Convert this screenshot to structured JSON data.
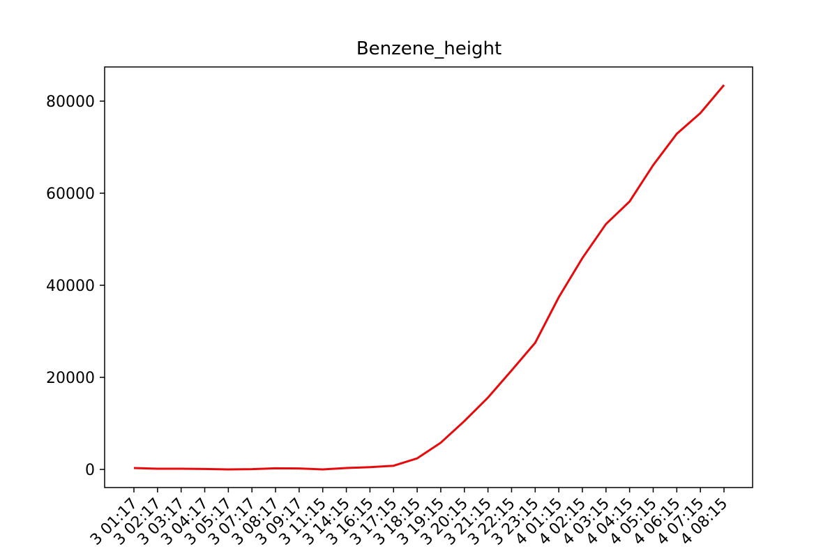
{
  "chart_data": {
    "type": "line",
    "title": "Benzene_height",
    "categories": [
      "3 01:17",
      "3 02:17",
      "3 03:17",
      "3 04:17",
      "3 05:17",
      "3 07:17",
      "3 08:17",
      "3 09:17",
      "3 11:15",
      "3 14:15",
      "3 16:15",
      "3 17:15",
      "3 18:15",
      "3 19:15",
      "3 20:15",
      "3 21:15",
      "3 22:15",
      "3 23:15",
      "4 01:15",
      "4 02:15",
      "4 03:15",
      "4 04:15",
      "4 05:15",
      "4 06:15",
      "4 07:15",
      "4 08:15"
    ],
    "values": [
      300,
      150,
      150,
      100,
      0,
      50,
      250,
      200,
      0,
      300,
      500,
      800,
      2400,
      5800,
      10500,
      15600,
      21500,
      27500,
      37400,
      45900,
      53300,
      58200,
      66100,
      72900,
      77400,
      83500
    ],
    "color": "#e8090a",
    "ylim": [
      -3940,
      87420
    ],
    "yticks": [
      0,
      20000,
      40000,
      60000,
      80000
    ]
  }
}
